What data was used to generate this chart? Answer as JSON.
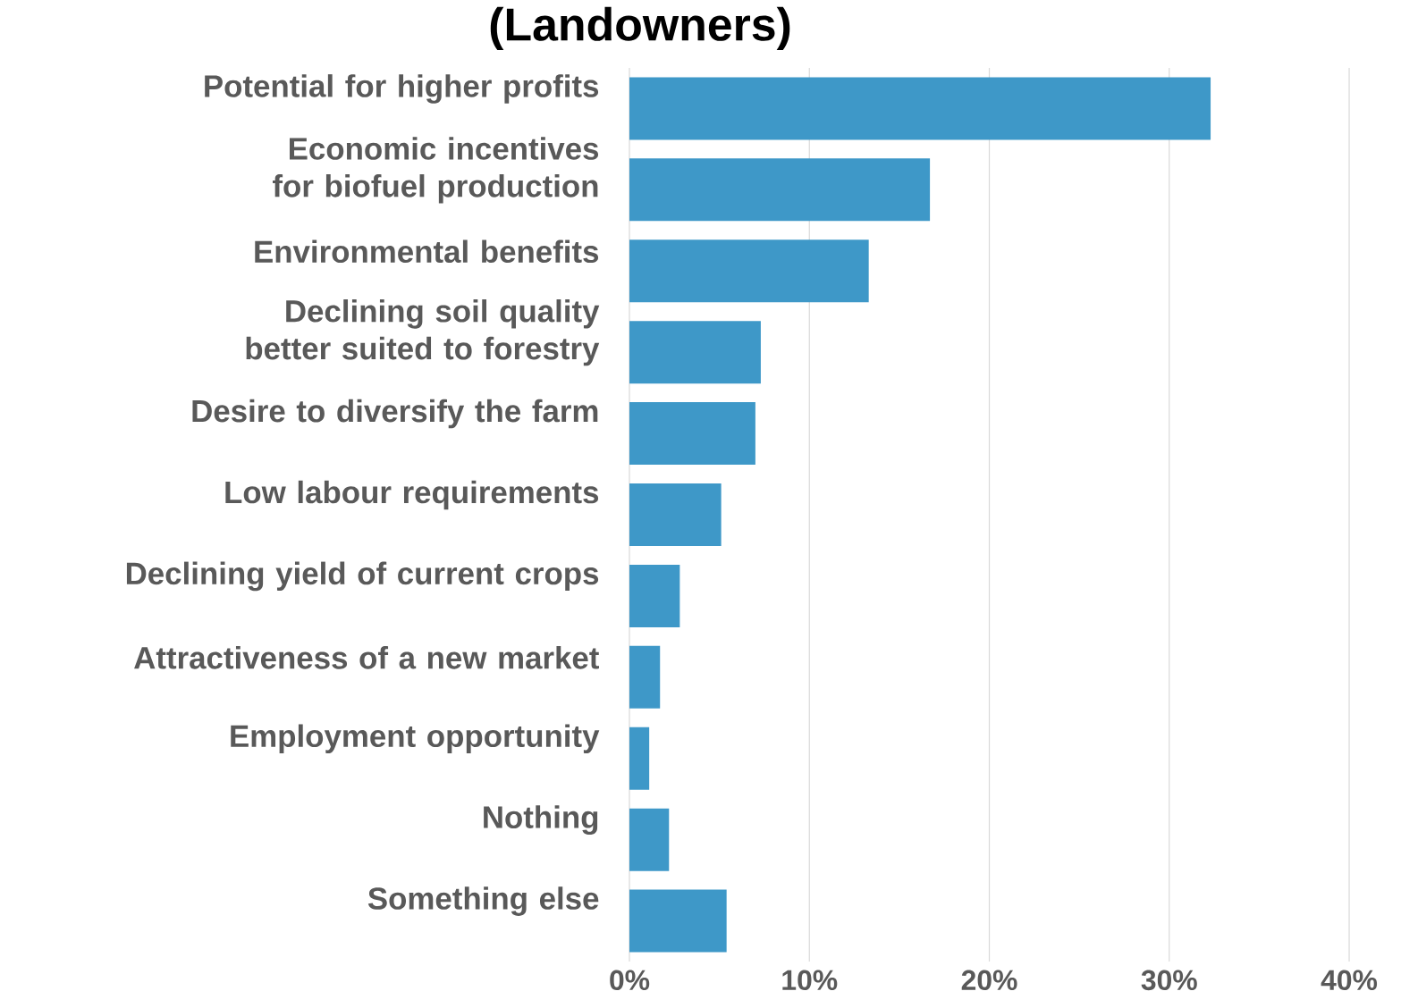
{
  "chart_data": {
    "type": "bar",
    "orientation": "horizontal",
    "title": "(Landowners)",
    "categories": [
      "Potential for higher profits",
      "Economic incentives for biofuel production",
      "Environmental benefits",
      "Declining soil quality better suited to forestry",
      "Desire to diversify the farm",
      "Low labour requirements",
      "Declining yield of current crops",
      "Attractiveness of a new market",
      "Employment opportunity",
      "Nothing",
      "Something else"
    ],
    "values": [
      32.3,
      16.7,
      13.3,
      7.3,
      7.0,
      5.1,
      2.8,
      1.7,
      1.1,
      2.2,
      5.4
    ],
    "color": "#3e98c8",
    "xlim": [
      0,
      40
    ],
    "xticks": [
      {
        "value": 0,
        "label": "0%"
      },
      {
        "value": 10,
        "label": "10%"
      },
      {
        "value": 20,
        "label": "20%"
      },
      {
        "value": 30,
        "label": "30%"
      },
      {
        "value": 40,
        "label": "40%"
      }
    ],
    "grid": "x"
  }
}
